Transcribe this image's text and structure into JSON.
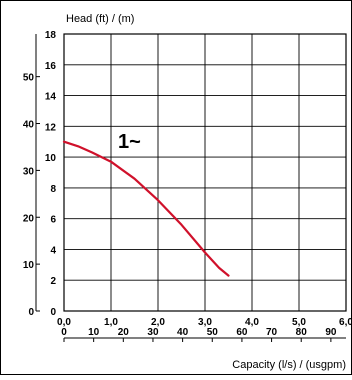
{
  "chart_data": {
    "type": "line",
    "title": "",
    "annotation": "1~",
    "ylabel": "Head (ft) / (m)",
    "xlabel": "Capacity (l/s) / (usgpm)",
    "grid": true,
    "x_primary": {
      "unit": "l/s",
      "range": [
        0,
        6
      ],
      "ticks": [
        "0,0",
        "1,0",
        "2,0",
        "3,0",
        "4,0",
        "5,0",
        "6,0"
      ]
    },
    "x_secondary": {
      "unit": "usgpm",
      "range": [
        0,
        95.1
      ],
      "ticks": [
        "0",
        "10",
        "20",
        "30",
        "40",
        "50",
        "60",
        "70",
        "80",
        "90"
      ]
    },
    "y_primary": {
      "unit": "m",
      "range": [
        0,
        18
      ],
      "ticks": [
        "0",
        "2",
        "4",
        "6",
        "8",
        "10",
        "12",
        "14",
        "16",
        "18"
      ]
    },
    "y_secondary": {
      "unit": "ft",
      "range": [
        0,
        59.1
      ],
      "ticks": [
        "0",
        "10",
        "20",
        "30",
        "40",
        "50"
      ]
    },
    "series": [
      {
        "color": "#d0112b",
        "x": [
          0.0,
          0.3,
          0.6,
          1.0,
          1.5,
          2.0,
          2.5,
          3.0,
          3.3,
          3.5
        ],
        "y": [
          11.0,
          10.7,
          10.3,
          9.7,
          8.6,
          7.2,
          5.6,
          3.8,
          2.8,
          2.3
        ]
      }
    ]
  }
}
